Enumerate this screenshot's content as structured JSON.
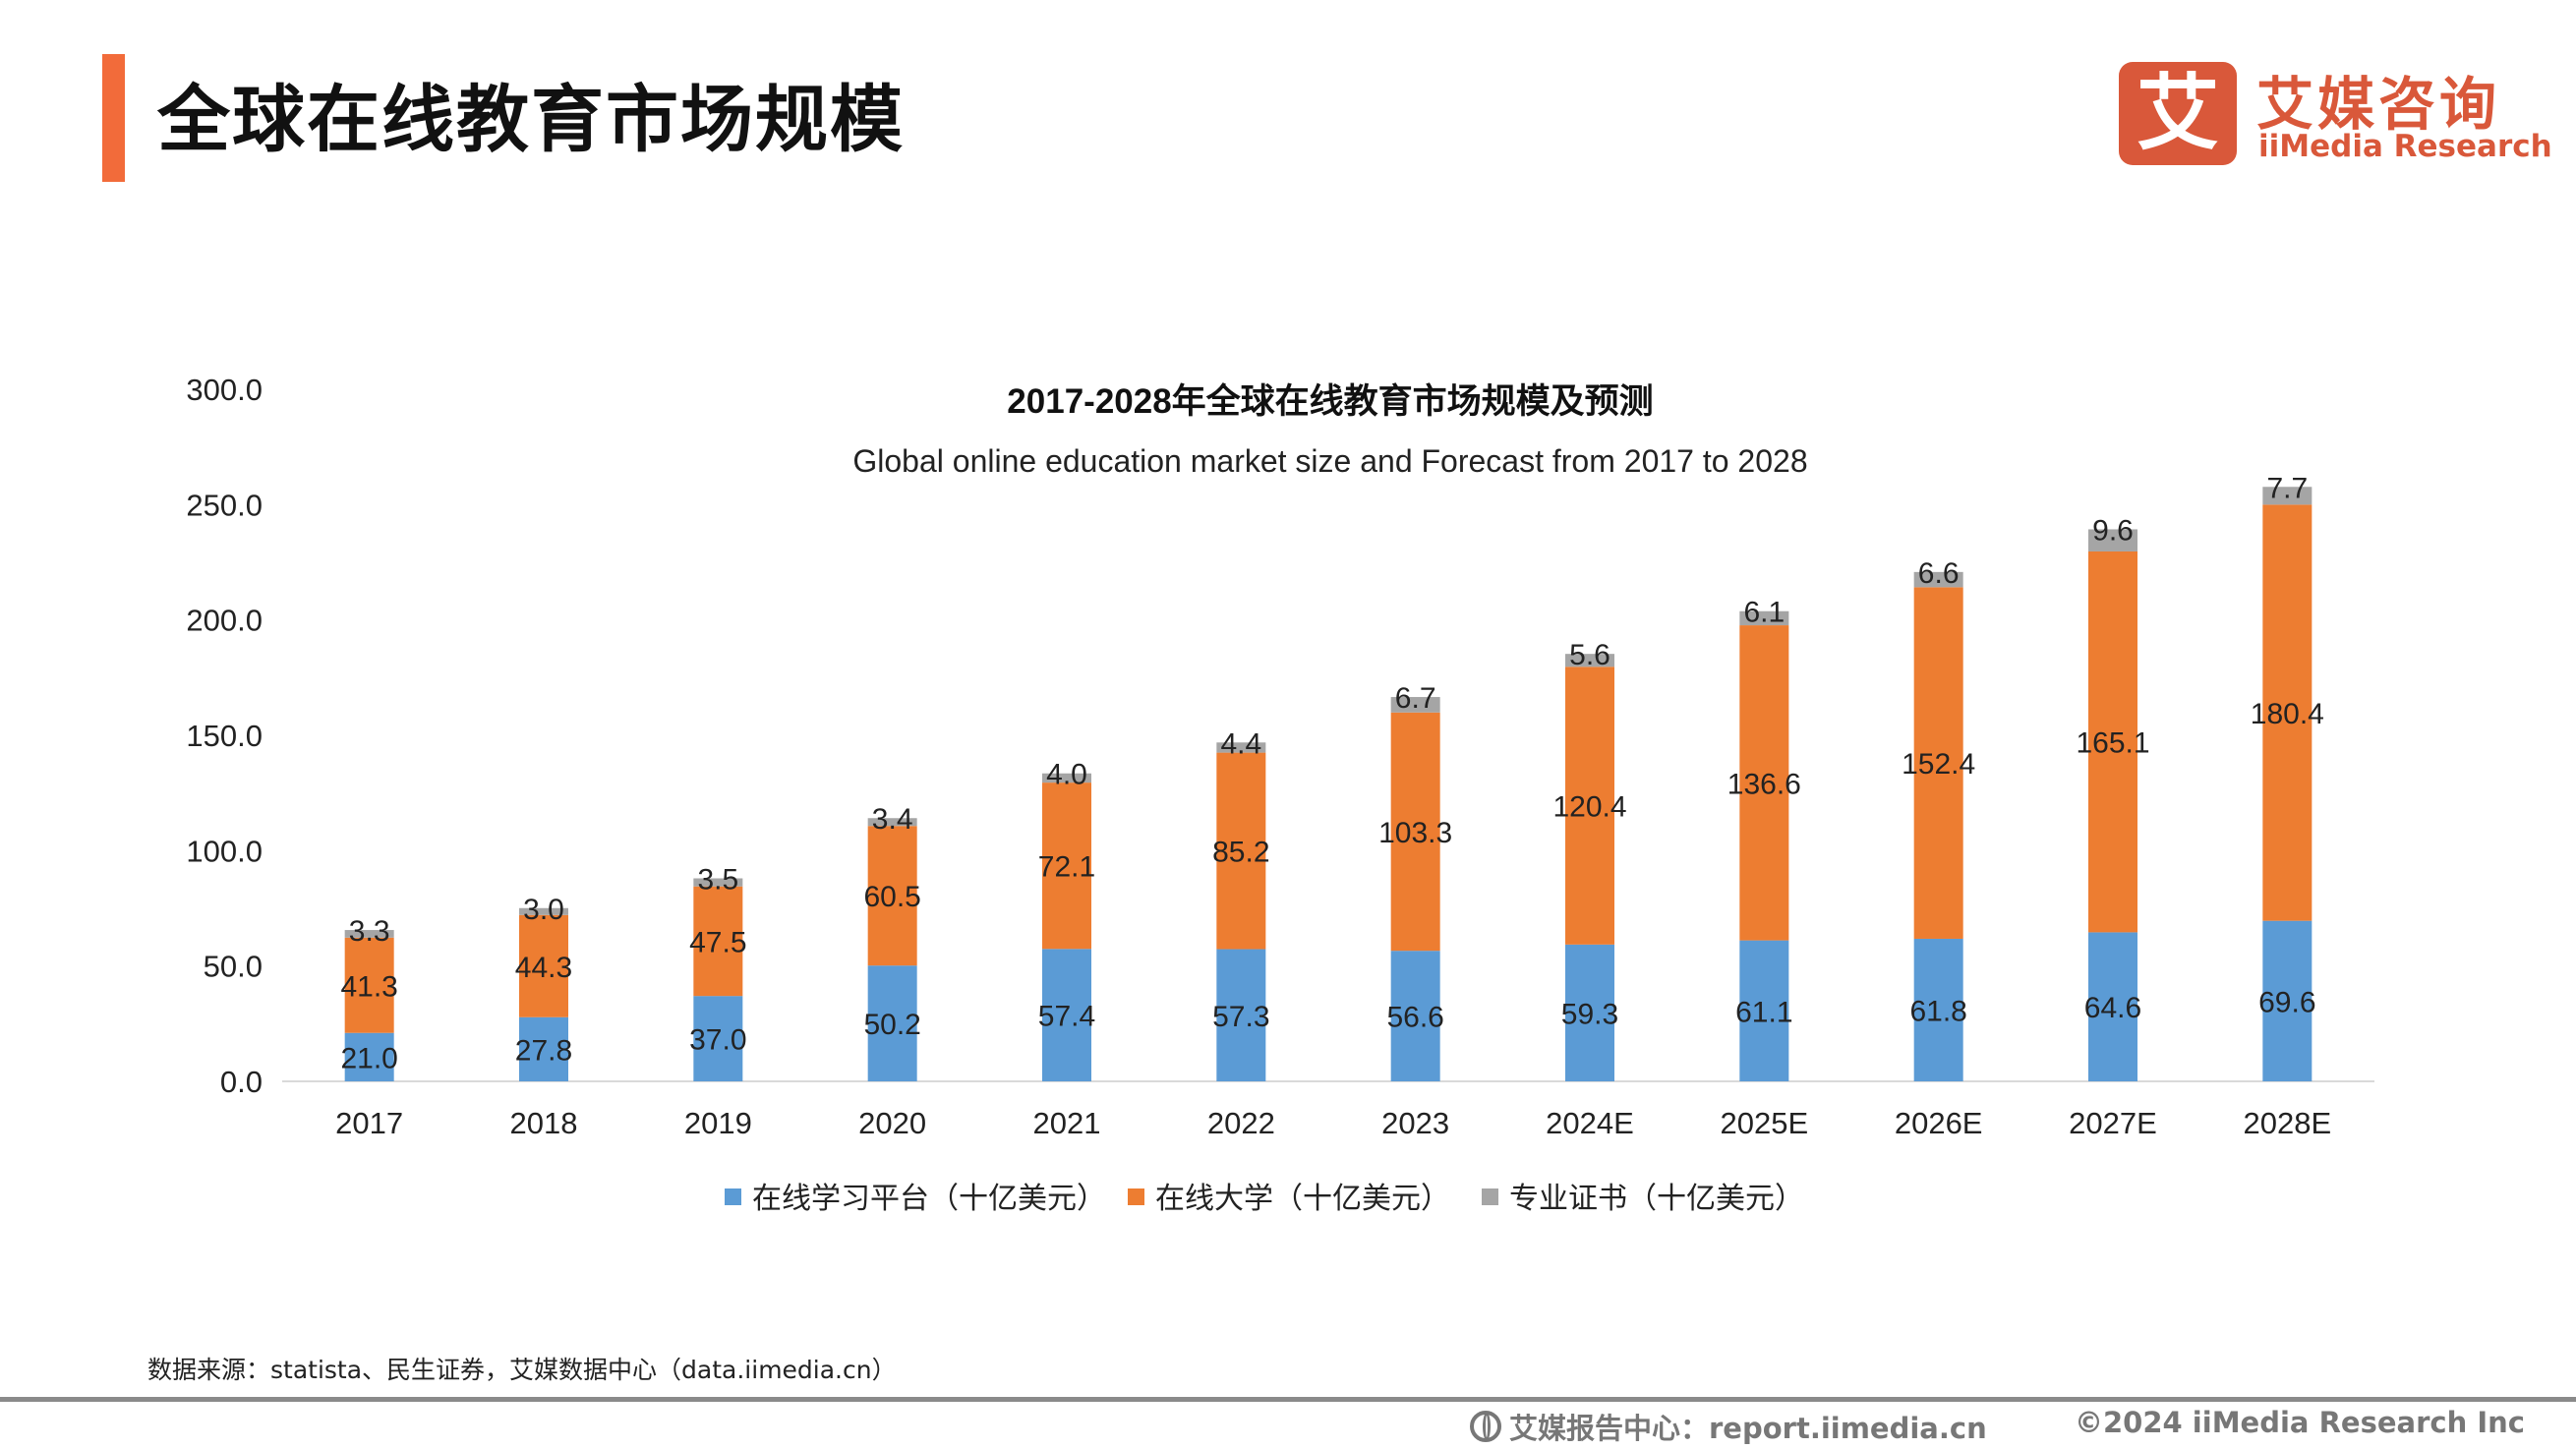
{
  "header": {
    "title": "全球在线教育市场规模",
    "accent_color": "#F26B3A"
  },
  "logo": {
    "mark": "艾",
    "name_cn": "艾媒咨询",
    "name_en": "iiMedia Research",
    "color": "#D9583A"
  },
  "chart_data": {
    "type": "stacked-bar",
    "title": "2017-2028年全球在线教育市场规模及预测",
    "subtitle": "Global online education market size and Forecast from 2017 to 2028",
    "categories": [
      "2017",
      "2018",
      "2019",
      "2020",
      "2021",
      "2022",
      "2023",
      "2024E",
      "2025E",
      "2026E",
      "2027E",
      "2028E"
    ],
    "series": [
      {
        "name": "在线学习平台（十亿美元）",
        "color": "#5B9BD5",
        "values": [
          21.0,
          27.8,
          37.0,
          50.2,
          57.4,
          57.3,
          56.6,
          59.3,
          61.1,
          61.8,
          64.6,
          69.6
        ]
      },
      {
        "name": "在线大学（十亿美元）",
        "color": "#ED7D31",
        "values": [
          41.3,
          44.3,
          47.5,
          60.5,
          72.1,
          85.2,
          103.3,
          120.4,
          136.6,
          152.4,
          165.1,
          180.4
        ]
      },
      {
        "name": "专业证书（十亿美元）",
        "color": "#A5A5A5",
        "values": [
          3.3,
          3.0,
          3.5,
          3.4,
          4.0,
          4.4,
          6.7,
          5.6,
          6.1,
          6.6,
          9.6,
          7.7
        ]
      }
    ],
    "yticks": [
      "0.0",
      "50.0",
      "100.0",
      "150.0",
      "200.0",
      "250.0",
      "300.0"
    ],
    "ylim": [
      0,
      300
    ],
    "grid": false,
    "legend": "bottom"
  },
  "footer": {
    "source": "数据来源：statista、民生证券，艾媒数据中心（data.iimedia.cn）",
    "report_center": "艾媒报告中心：report.iimedia.cn",
    "copyright": "©2024  iiMedia Research  Inc"
  }
}
